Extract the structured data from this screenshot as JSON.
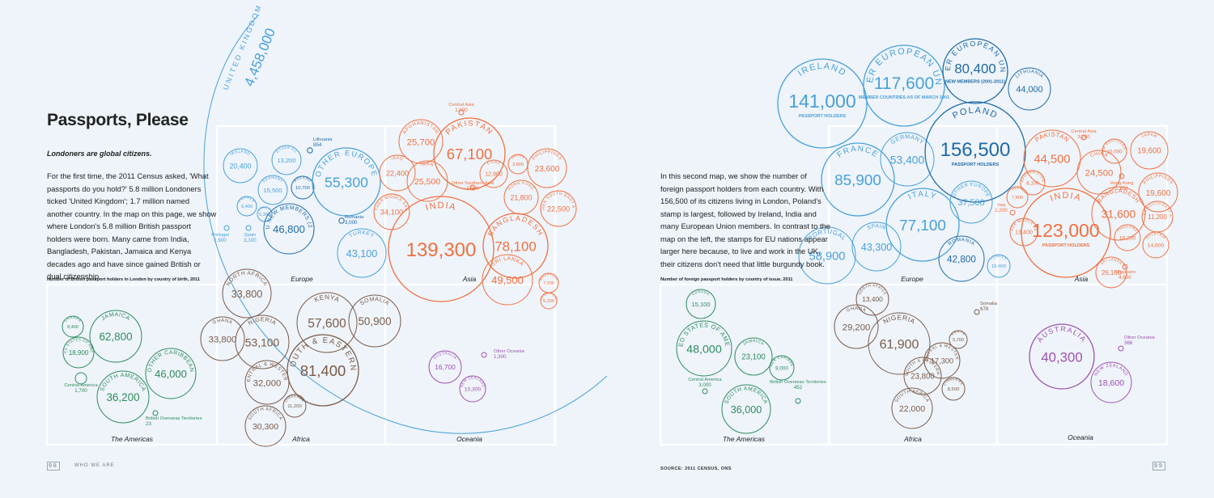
{
  "left_page": {
    "title": "Passports, Please",
    "subtitle": "Londoners are global citizens.",
    "body": "For the first time, the 2011 Census asked, 'What passports do you hold?' 5.8 million Londoners ticked 'United Kingdom'; 1.7 million named another country. In the map on this page, we show where London's 5.8 million British passport holders were born. Many came from India, Bangladesh, Pakistan, Jamaica and Kenya decades ago and have since gained British or dual citizenship.",
    "caption": "Number of British passport holders in London by country of birth, 2011",
    "folio_number": "98",
    "folio_label": "WHO WE ARE",
    "uk": {
      "label": "UNITED KINGDOM",
      "value": "4,458,000"
    },
    "regions": [
      "Europe",
      "Asia",
      "The Americas",
      "Africa",
      "Oceania"
    ],
    "stamps": [
      {
        "label": "IRELAND",
        "value": "20,400",
        "color": "#4aa0d8"
      },
      {
        "label": "OTHER EU",
        "value": "13,200",
        "color": "#4aa0d8"
      },
      {
        "label": "POLAND",
        "value": "10,700",
        "color": "#1f6aa5"
      },
      {
        "label": "Lithuania",
        "value": "854",
        "color": "#1f6aa5"
      },
      {
        "label": "OTHER EUROPE",
        "value": "55,300",
        "color": "#4aa0d8"
      },
      {
        "label": "GERMANY",
        "value": "15,500",
        "color": "#4aa0d8"
      },
      {
        "label": "FRANCE",
        "value": "6,400",
        "color": "#4aa0d8"
      },
      {
        "label": "ITALY",
        "value": "5,300",
        "color": "#4aa0d8"
      },
      {
        "label": "OTHER EU NEW MEMBERS (2001-2011)",
        "value": "46,800",
        "color": "#1f6aa5"
      },
      {
        "label": "Romania",
        "value": "3,000",
        "color": "#1f6aa5"
      },
      {
        "label": "Portugal",
        "value": "1,900",
        "color": "#4aa0d8"
      },
      {
        "label": "Spain",
        "value": "3,100",
        "color": "#4aa0d8"
      },
      {
        "label": "TURKEY",
        "value": "43,100",
        "color": "#4aa0d8"
      },
      {
        "label": "Central Asia",
        "value": "1,000",
        "color": "#f07040"
      },
      {
        "label": "AFGHANISTAN",
        "value": "25,700",
        "color": "#f07040"
      },
      {
        "label": "PAKISTAN",
        "value": "67,100",
        "color": "#f07040"
      },
      {
        "label": "IRAQ",
        "value": "22,400",
        "color": "#f07040"
      },
      {
        "label": "IRAN",
        "value": "25,500",
        "color": "#f07040"
      },
      {
        "label": "CHINA",
        "value": "12,900",
        "color": "#f07040"
      },
      {
        "label": "JAPAN",
        "value": "3,800",
        "color": "#f07040"
      },
      {
        "label": "PHILIPPINES",
        "value": "23,600",
        "color": "#f07040"
      },
      {
        "label": "Other Southern Asia",
        "value": "2,900",
        "color": "#f07040"
      },
      {
        "label": "HONG KONG",
        "value": "21,800",
        "color": "#f07040"
      },
      {
        "label": "OTHER MIDDLE EAST",
        "value": "34,100",
        "color": "#f07040"
      },
      {
        "label": "INDIA",
        "value": "139,300",
        "color": "#f07040"
      },
      {
        "label": "BANGLADESH",
        "value": "78,100",
        "color": "#f07040"
      },
      {
        "label": "OTHER SOUTH-EAST ASIA",
        "value": "22,500",
        "color": "#f07040"
      },
      {
        "label": "MALAYSIA",
        "value": "7,200",
        "color": "#f07040"
      },
      {
        "label": "SINGAPORE",
        "value": "5,200",
        "color": "#f07040"
      },
      {
        "label": "SRI LANKA",
        "value": "49,500",
        "color": "#f07040"
      },
      {
        "label": "CANADA",
        "value": "8,400",
        "color": "#2f8a5c"
      },
      {
        "label": "JAMAICA",
        "value": "62,800",
        "color": "#2f8a5c"
      },
      {
        "label": "UNITED STATES OF AMERICA",
        "value": "18,900",
        "color": "#2f8a5c"
      },
      {
        "label": "OTHER CARIBBEAN",
        "value": "46,000",
        "color": "#2f8a5c"
      },
      {
        "label": "SOUTH AMERICA",
        "value": "36,200",
        "color": "#2f8a5c"
      },
      {
        "label": "Central America",
        "value": "1,700",
        "color": "#2f8a5c"
      },
      {
        "label": "British Overseas Territories",
        "value": "23",
        "color": "#2f8a5c"
      },
      {
        "label": "NORTH AFRICA",
        "value": "33,800",
        "color": "#7a5b49"
      },
      {
        "label": "GHANA",
        "value": "33,800",
        "color": "#7a5b49"
      },
      {
        "label": "NIGERIA",
        "value": "53,100",
        "color": "#7a5b49"
      },
      {
        "label": "KENYA",
        "value": "57,600",
        "color": "#7a5b49"
      },
      {
        "label": "SOMALIA",
        "value": "50,900",
        "color": "#7a5b49"
      },
      {
        "label": "OTHER CENTRAL & WESTERN AFRICA",
        "value": "32,000",
        "color": "#7a5b49"
      },
      {
        "label": "OTHER SOUTH & EASTERN AFRICA",
        "value": "81,400",
        "color": "#7a5b49"
      },
      {
        "label": "ZIMBABWE",
        "value": "11,200",
        "color": "#7a5b49"
      },
      {
        "label": "SOUTH AFRICA",
        "value": "30,300",
        "color": "#7a5b49"
      },
      {
        "label": "AUSTRALIA",
        "value": "16,700",
        "color": "#a050b0"
      },
      {
        "label": "NEW ZEALAND",
        "value": "10,300",
        "color": "#a050b0"
      },
      {
        "label": "Other Oceania",
        "value": "1,300",
        "color": "#a050b0"
      }
    ]
  },
  "right_page": {
    "body": "In this second map, we show the number of foreign passport holders from each country. With 156,500 of its citizens living in London, Poland's stamp is largest, followed by Ireland, India and many European Union members. In contrast to the map on the left, the stamps for EU nations appear larger here because, to live and work in the UK, their citizens don't need that little burgundy book.",
    "caption": "Number of foreign passport holders by country of issue, 2011",
    "source": "SOURCE: 2011 CENSUS, ONS",
    "folio_number": "99",
    "regions": [
      "Europe",
      "Asia",
      "The Americas",
      "Africa",
      "Oceania"
    ],
    "stamps": [
      {
        "label": "IRELAND",
        "value": "141,000",
        "sub": "PASSPORT HOLDERS",
        "color": "#4aa0d8"
      },
      {
        "label": "OTHER EUROPEAN UNION",
        "value": "117,600",
        "sub": "MEMBER COUNTRIES AS OF MARCH 2001",
        "color": "#4aa0d8"
      },
      {
        "label": "OTHER EUROPEAN UNION",
        "value": "80,400",
        "sub": "NEW MEMBERS (2001-2011)",
        "color": "#1f6aa5"
      },
      {
        "label": "LITHUANIA",
        "value": "44,000",
        "color": "#1f6aa5"
      },
      {
        "label": "FRANCE",
        "value": "85,900",
        "color": "#4aa0d8"
      },
      {
        "label": "GERMANY",
        "value": "53,400",
        "color": "#4aa0d8"
      },
      {
        "label": "POLAND",
        "value": "156,500",
        "sub": "PASSPORT HOLDERS",
        "color": "#1f6aa5"
      },
      {
        "label": "ITALY",
        "value": "77,100",
        "color": "#4aa0d8"
      },
      {
        "label": "OTHER EUROPE",
        "value": "37,500",
        "color": "#4aa0d8"
      },
      {
        "label": "PORTUGAL",
        "value": "58,900",
        "color": "#4aa0d8"
      },
      {
        "label": "SPAIN",
        "value": "43,300",
        "color": "#4aa0d8"
      },
      {
        "label": "ROMANIA",
        "value": "42,800",
        "color": "#1f6aa5"
      },
      {
        "label": "TURKEY",
        "value": "15,400",
        "color": "#4aa0d8"
      },
      {
        "label": "PAKISTAN",
        "value": "44,500",
        "color": "#f07040"
      },
      {
        "label": "Central Asia",
        "value": "3,200",
        "color": "#f07040"
      },
      {
        "label": "OTHER SOUTHERN ASIA",
        "value": "10,000",
        "color": "#f07040"
      },
      {
        "label": "JAPAN",
        "value": "19,600",
        "color": "#f07040"
      },
      {
        "label": "CHINA",
        "value": "24,500",
        "color": "#f07040"
      },
      {
        "label": "AFGHANISTAN",
        "value": "8,100",
        "color": "#f07040"
      },
      {
        "label": "Hong Kong",
        "value": "1,800",
        "color": "#f07040"
      },
      {
        "label": "PHILIPPINES",
        "value": "19,600",
        "color": "#f07040"
      },
      {
        "label": "IRAN",
        "value": "7,800",
        "color": "#f07040"
      },
      {
        "label": "Iraq",
        "value": "2,200",
        "color": "#f07040"
      },
      {
        "label": "OTHER MIDDLE EAST",
        "value": "13,400",
        "color": "#f07040"
      },
      {
        "label": "INDIA",
        "value": "123,000",
        "sub": "PASSPORT HOLDERS",
        "color": "#f07040"
      },
      {
        "label": "BANGLADESH",
        "value": "31,600",
        "color": "#f07040"
      },
      {
        "label": "OTHER SOUTH-EAST ASIA",
        "value": "11,200",
        "color": "#f07040"
      },
      {
        "label": "THAILAND",
        "value": "18,200",
        "color": "#f07040"
      },
      {
        "label": "MALAYSIA",
        "value": "14,600",
        "color": "#f07040"
      },
      {
        "label": "SRI LANKA",
        "value": "26,100",
        "color": "#f07040"
      },
      {
        "label": "Singapore",
        "value": "4,600",
        "color": "#f07040"
      },
      {
        "label": "CANADA",
        "value": "15,100",
        "color": "#2f8a5c"
      },
      {
        "label": "UNITED STATES OF AMERICA",
        "value": "48,000",
        "color": "#2f8a5c"
      },
      {
        "label": "JAMAICA",
        "value": "23,100",
        "color": "#2f8a5c"
      },
      {
        "label": "OTHER CARIBBEAN",
        "value": "9,000",
        "color": "#2f8a5c"
      },
      {
        "label": "Central America",
        "value": "3,000",
        "color": "#2f8a5c"
      },
      {
        "label": "SOUTH AMERICA",
        "value": "36,000",
        "color": "#2f8a5c"
      },
      {
        "label": "British Overseas Territories",
        "value": "452",
        "color": "#2f8a5c"
      },
      {
        "label": "NORTH AFRICA",
        "value": "13,400",
        "color": "#7a5b49"
      },
      {
        "label": "GHANA",
        "value": "29,200",
        "color": "#7a5b49"
      },
      {
        "label": "NIGERIA",
        "value": "61,900",
        "color": "#7a5b49"
      },
      {
        "label": "Somalia",
        "value": "678",
        "color": "#7a5b49"
      },
      {
        "label": "KENYA",
        "value": "5,700",
        "color": "#7a5b49"
      },
      {
        "label": "OTHER CENTRAL & WESTERN AFRICA",
        "value": "17,300",
        "color": "#7a5b49"
      },
      {
        "label": "OTHER SOUTH & EASTERN AFRICA",
        "value": "23,800",
        "color": "#7a5b49"
      },
      {
        "label": "ZIMBABWE",
        "value": "8,500",
        "color": "#7a5b49"
      },
      {
        "label": "SOUTH AFRICA",
        "value": "22,000",
        "color": "#7a5b49"
      },
      {
        "label": "AUSTRALIA",
        "value": "40,300",
        "color": "#a050b0"
      },
      {
        "label": "Other Oceania",
        "value": "366",
        "color": "#a050b0"
      },
      {
        "label": "NEW ZEALAND",
        "value": "18,600",
        "color": "#a050b0"
      }
    ]
  }
}
